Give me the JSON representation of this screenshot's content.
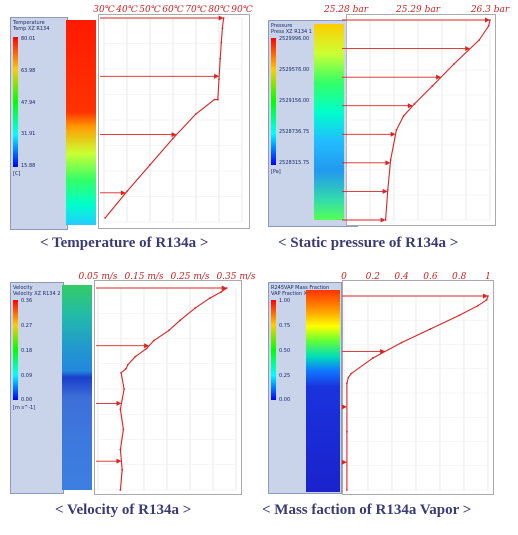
{
  "chart_data": [
    {
      "type": "line",
      "title": "",
      "xlabel": "",
      "ylabel": "",
      "legend": {
        "title": "Temperature",
        "subtitle": "Temp XZ R134",
        "unit": "[C]",
        "values": [
          "80.01",
          "63.98",
          "47.94",
          "31.91",
          "15.88"
        ]
      },
      "x_ticks": [
        "30℃",
        "40℃",
        "50℃",
        "60℃",
        "70℃",
        "80℃",
        "90℃"
      ],
      "xlim": [
        30,
        90
      ],
      "ylim": [
        0,
        1
      ],
      "x": [
        30.5,
        40,
        50,
        60,
        70,
        78,
        79.5,
        80,
        80.5,
        81,
        81.5,
        82
      ],
      "y": [
        0.02,
        0.15,
        0.28,
        0.41,
        0.53,
        0.6,
        0.6,
        0.7,
        0.8,
        0.88,
        0.95,
        1.0
      ],
      "caption": "< Temperature of R134a >"
    },
    {
      "type": "line",
      "title": "",
      "xlabel": "",
      "ylabel": "",
      "legend": {
        "title": "Pressure",
        "subtitle": "Press XZ R134 1",
        "unit": "[Pa]",
        "values": [
          "2529996.00",
          "2529576.00",
          "2529156.00",
          "2528736.75",
          "2528315.75"
        ]
      },
      "x_ticks": [
        "25.28 bar",
        "25.29 bar",
        "26.3 bar"
      ],
      "xlim": [
        25.28,
        25.3
      ],
      "ylim": [
        0,
        1
      ],
      "x": [
        25.2855,
        25.2858,
        25.2862,
        25.287,
        25.288,
        25.2895,
        25.292,
        25.295,
        25.2985,
        25.2998,
        25.3
      ],
      "y": [
        0.0,
        0.15,
        0.3,
        0.45,
        0.52,
        0.58,
        0.67,
        0.78,
        0.9,
        0.97,
        1.0
      ],
      "caption": "< Static pressure of R134a >"
    },
    {
      "type": "line",
      "title": "",
      "xlabel": "",
      "ylabel": "",
      "legend": {
        "title": "Velocity",
        "subtitle": "Velocity XZ R134 2",
        "unit": "[m s^-1]",
        "values": [
          "0.36",
          "0.27",
          "0.18",
          "0.09",
          "0.00"
        ]
      },
      "x_ticks": [
        "0.05 m/s",
        "0.15 m/s",
        "0.25 m/s",
        "0.35 m/s"
      ],
      "xlim": [
        0.0,
        0.37
      ],
      "ylim": [
        0,
        1
      ],
      "x": [
        0.06,
        0.065,
        0.06,
        0.068,
        0.06,
        0.07,
        0.062,
        0.075,
        0.08,
        0.1,
        0.13,
        0.15,
        0.19,
        0.22,
        0.26,
        0.3,
        0.33,
        0.345
      ],
      "y": [
        0.0,
        0.1,
        0.2,
        0.3,
        0.4,
        0.5,
        0.58,
        0.6,
        0.62,
        0.66,
        0.7,
        0.74,
        0.79,
        0.84,
        0.9,
        0.95,
        0.98,
        1.0
      ],
      "caption": "< Velocity of R134a >"
    },
    {
      "type": "line",
      "title": "",
      "xlabel": "",
      "ylabel": "",
      "legend": {
        "title": "R245VAP Mass Fraction",
        "subtitle": "VAP Fraction XZ R134",
        "unit": "",
        "values": [
          "1.00",
          "0.75",
          "0.50",
          "0.25",
          "0.00"
        ]
      },
      "x_ticks": [
        "0",
        "0.2",
        "0.4",
        "0.6",
        "0.8",
        "1"
      ],
      "xlim": [
        0,
        1
      ],
      "ylim": [
        0,
        1
      ],
      "x": [
        0.02,
        0.02,
        0.02,
        0.03,
        0.05,
        0.2,
        0.4,
        0.6,
        0.8,
        0.93,
        0.99,
        1.0
      ],
      "y": [
        0.0,
        0.3,
        0.55,
        0.58,
        0.6,
        0.68,
        0.76,
        0.83,
        0.9,
        0.95,
        0.98,
        1.0
      ],
      "caption": "< Mass faction of R134a Vapor >"
    }
  ],
  "colors": {
    "caption": "#3b3b74",
    "curve": "#dd2222",
    "legend_bg": "#c9d4ea"
  }
}
